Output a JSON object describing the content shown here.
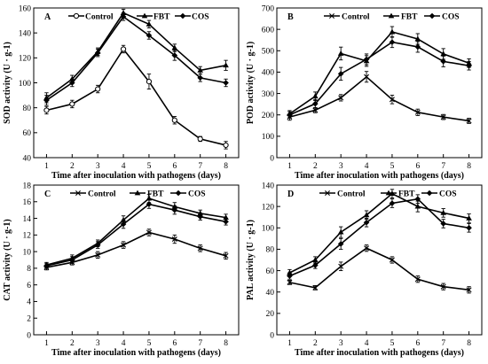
{
  "chart_data": [
    {
      "type": "line",
      "panel": "A",
      "xlabel": "Time after inoculation with pathogens (days)",
      "ylabel": "SOD activity (U · g-1)",
      "x": [
        1,
        2,
        3,
        4,
        5,
        6,
        7,
        8
      ],
      "xlim": [
        0.5,
        8.5
      ],
      "ylim": [
        40,
        160
      ],
      "yticks": [
        40,
        60,
        80,
        100,
        120,
        140,
        160
      ],
      "legend_placement": "top",
      "series": [
        {
          "name": "Control",
          "marker": "circle-open",
          "values": [
            78,
            83,
            95,
            127,
            101,
            70,
            55,
            50
          ],
          "errors": [
            3,
            3,
            3,
            3,
            6,
            3,
            2,
            3
          ]
        },
        {
          "name": "FBT",
          "marker": "triangle",
          "values": [
            88,
            103,
            125,
            156,
            147,
            128,
            110,
            114
          ],
          "errors": [
            4,
            3,
            3,
            3,
            3,
            3,
            3,
            4
          ]
        },
        {
          "name": "COS",
          "marker": "diamond",
          "values": [
            86,
            100,
            124,
            153,
            138,
            122,
            104,
            100
          ],
          "errors": [
            4,
            3,
            3,
            3,
            3,
            4,
            3,
            3
          ]
        }
      ]
    },
    {
      "type": "line",
      "panel": "B",
      "xlabel": "Time after inoculation with pathogens (days)",
      "ylabel": "POD activity (U · g-1)",
      "x": [
        1,
        2,
        3,
        4,
        5,
        6,
        7,
        8
      ],
      "xlim": [
        0.5,
        8.5
      ],
      "ylim": [
        0,
        700
      ],
      "yticks": [
        0,
        100,
        200,
        300,
        400,
        500,
        600,
        700
      ],
      "legend_placement": "top",
      "series": [
        {
          "name": "Control",
          "marker": "x",
          "values": [
            190,
            222,
            280,
            378,
            272,
            212,
            190,
            172
          ],
          "errors": [
            15,
            12,
            15,
            25,
            20,
            15,
            12,
            12
          ]
        },
        {
          "name": "FBT",
          "marker": "triangle",
          "values": [
            205,
            287,
            487,
            452,
            588,
            555,
            485,
            442
          ],
          "errors": [
            15,
            20,
            30,
            25,
            25,
            25,
            25,
            20
          ]
        },
        {
          "name": "COS",
          "marker": "diamond",
          "values": [
            200,
            252,
            392,
            460,
            540,
            518,
            450,
            430
          ],
          "errors": [
            15,
            20,
            30,
            25,
            25,
            25,
            25,
            20
          ]
        }
      ]
    },
    {
      "type": "line",
      "panel": "C",
      "xlabel": "Time after inoculation with pathogens (days)",
      "ylabel": "CAT activity (U · g-1)",
      "x": [
        1,
        2,
        3,
        4,
        5,
        6,
        7,
        8
      ],
      "xlim": [
        0.5,
        8.5
      ],
      "ylim": [
        0,
        18
      ],
      "yticks": [
        0,
        2,
        4,
        6,
        8,
        10,
        12,
        14,
        16,
        18
      ],
      "legend_placement": "top",
      "series": [
        {
          "name": "Control",
          "marker": "x",
          "values": [
            8.1,
            8.7,
            9.6,
            10.8,
            12.3,
            11.5,
            10.4,
            9.5
          ],
          "errors": [
            0.3,
            0.3,
            0.4,
            0.4,
            0.4,
            0.5,
            0.4,
            0.4
          ]
        },
        {
          "name": "FBT",
          "marker": "triangle",
          "values": [
            8.4,
            9.2,
            11.0,
            13.8,
            16.4,
            15.4,
            14.6,
            14.1
          ],
          "errors": [
            0.3,
            0.4,
            0.4,
            0.5,
            0.5,
            0.5,
            0.4,
            0.4
          ]
        },
        {
          "name": "COS",
          "marker": "diamond",
          "values": [
            8.3,
            9.0,
            10.8,
            13.3,
            15.7,
            15.0,
            14.2,
            13.6
          ],
          "errors": [
            0.3,
            0.4,
            0.4,
            0.5,
            0.5,
            0.5,
            0.4,
            0.4
          ]
        }
      ]
    },
    {
      "type": "line",
      "panel": "D",
      "xlabel": "Time after inoculation with pathogens (days)",
      "ylabel": "PAL activity (U · g-1)",
      "x": [
        1,
        2,
        3,
        4,
        5,
        6,
        7,
        8
      ],
      "xlim": [
        0.5,
        8.5
      ],
      "ylim": [
        0,
        140
      ],
      "yticks": [
        0,
        20,
        40,
        60,
        80,
        100,
        120,
        140
      ],
      "legend_placement": "top",
      "series": [
        {
          "name": "Control",
          "marker": "x",
          "values": [
            49,
            44,
            64,
            81,
            70,
            52,
            45,
            42
          ],
          "errors": [
            2,
            2,
            4,
            3,
            3,
            3,
            3,
            3
          ]
        },
        {
          "name": "FBT",
          "marker": "triangle",
          "values": [
            58,
            70,
            96,
            112,
            132,
            120,
            114,
            109
          ],
          "errors": [
            3,
            3,
            5,
            4,
            4,
            5,
            4,
            4
          ]
        },
        {
          "name": "COS",
          "marker": "diamond",
          "values": [
            55,
            65,
            85,
            105,
            123,
            127,
            104,
            100
          ],
          "errors": [
            3,
            3,
            5,
            4,
            4,
            4,
            4,
            4
          ]
        }
      ]
    }
  ]
}
